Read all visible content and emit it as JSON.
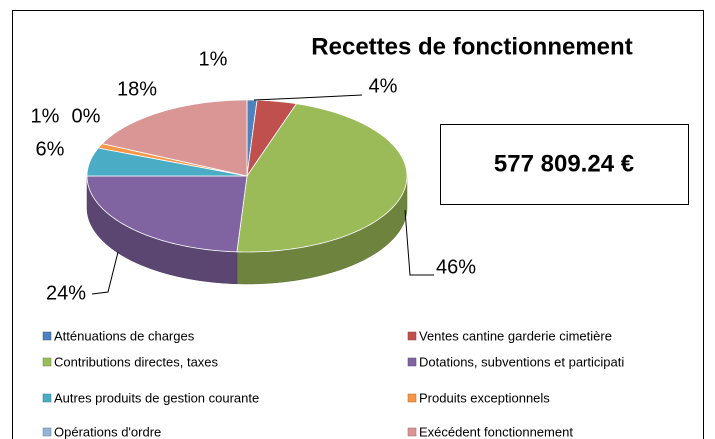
{
  "chart_data": {
    "type": "pie3d",
    "title": "Recettes de fonctionnement",
    "annotation": "577 809.24 €",
    "categories": [
      "Atténuations de charges",
      "Ventes cantine garderie cimetière",
      "Contributions directes, taxes",
      "Dotations, subventions et participati",
      "Autres produits de gestion courante",
      "Produits exceptionnels",
      "Opérations d'ordre",
      "Exécédent fonctionnement"
    ],
    "values": [
      1,
      4,
      46,
      24,
      6,
      1,
      0,
      18
    ],
    "value_labels": [
      "1%",
      "4%",
      "46%",
      "24%",
      "6%",
      "1%",
      "0%",
      "18%"
    ],
    "colors": [
      "#4f81bd",
      "#c0504d",
      "#9bbb59",
      "#8064a2",
      "#4bacc6",
      "#f79646",
      "#95b3d7",
      "#d99694"
    ]
  }
}
